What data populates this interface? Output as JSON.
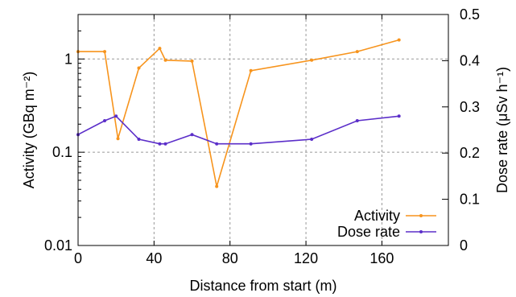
{
  "chart_data": {
    "type": "line",
    "xlabel": "Distance from start (m)",
    "ylabel_left": "Activity (GBq m⁻²)",
    "ylabel_right": "Dose rate (μSv h⁻¹)",
    "x_range": [
      0,
      195
    ],
    "x_ticks": [
      0,
      40,
      80,
      120,
      160
    ],
    "y_left_range": [
      0.01,
      3
    ],
    "y_left_scale": "log",
    "y_left_ticks": [
      {
        "value": 0.01,
        "label": "0.01"
      },
      {
        "value": 0.1,
        "label": "0.1"
      },
      {
        "value": 1,
        "label": "1"
      }
    ],
    "y_right_range": [
      0,
      0.5
    ],
    "y_right_ticks": [
      {
        "value": 0,
        "label": "0"
      },
      {
        "value": 0.1,
        "label": "0.1"
      },
      {
        "value": 0.2,
        "label": "0.2"
      },
      {
        "value": 0.3,
        "label": "0.3"
      },
      {
        "value": 0.4,
        "label": "0.4"
      },
      {
        "value": 0.5,
        "label": "0.5"
      }
    ],
    "grid": true,
    "legend_position": "bottom-right",
    "series": [
      {
        "name": "Activity",
        "axis": "left",
        "color": "#f7941d",
        "points": [
          [
            0,
            1.2
          ],
          [
            14,
            1.2
          ],
          [
            21,
            0.14
          ],
          [
            32,
            0.8
          ],
          [
            43,
            1.3
          ],
          [
            46,
            0.97
          ],
          [
            60,
            0.95
          ],
          [
            73,
            0.043
          ],
          [
            91,
            0.75
          ],
          [
            123,
            0.97
          ],
          [
            147,
            1.2
          ],
          [
            169,
            1.6
          ]
        ]
      },
      {
        "name": "Dose rate",
        "axis": "right",
        "color": "#5b2ec9",
        "points": [
          [
            0,
            0.24
          ],
          [
            14,
            0.27
          ],
          [
            20,
            0.28
          ],
          [
            32,
            0.23
          ],
          [
            43,
            0.22
          ],
          [
            46,
            0.22
          ],
          [
            60,
            0.24
          ],
          [
            73,
            0.22
          ],
          [
            91,
            0.22
          ],
          [
            123,
            0.23
          ],
          [
            147,
            0.27
          ],
          [
            169,
            0.28
          ]
        ]
      }
    ]
  }
}
